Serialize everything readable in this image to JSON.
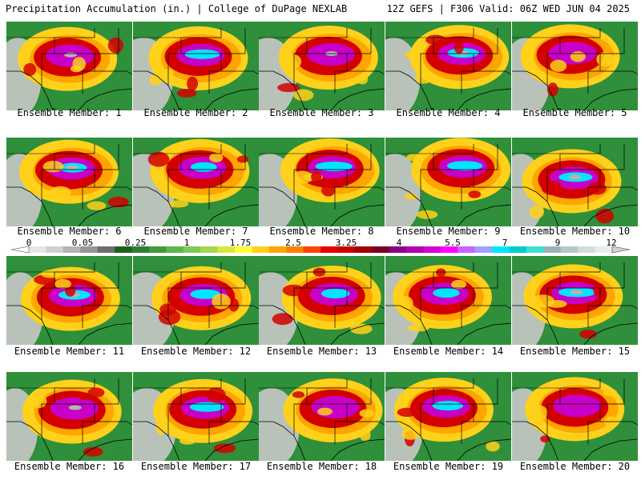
{
  "header": {
    "left": "Precipitation Accumulation (in.) | College of DuPage NEXLAB",
    "right": "12Z GEFS | F306 Valid: 06Z WED JUN 04 2025"
  },
  "panels": [
    {
      "caption": "Ensemble Member: 1"
    },
    {
      "caption": "Ensemble Member: 2"
    },
    {
      "caption": "Ensemble Member: 3"
    },
    {
      "caption": "Ensemble Member: 4"
    },
    {
      "caption": "Ensemble Member: 5"
    },
    {
      "caption": "Ensemble Member: 6"
    },
    {
      "caption": "Ensemble Member: 7"
    },
    {
      "caption": "Ensemble Member: 8"
    },
    {
      "caption": "Ensemble Member: 9"
    },
    {
      "caption": "Ensemble Member: 10"
    },
    {
      "caption": "Ensemble Member: 11"
    },
    {
      "caption": "Ensemble Member: 12"
    },
    {
      "caption": "Ensemble Member: 13"
    },
    {
      "caption": "Ensemble Member: 14"
    },
    {
      "caption": "Ensemble Member: 15"
    },
    {
      "caption": "Ensemble Member: 16"
    },
    {
      "caption": "Ensemble Member: 17"
    },
    {
      "caption": "Ensemble Member: 18"
    },
    {
      "caption": "Ensemble Member: 19"
    },
    {
      "caption": "Ensemble Member: 20"
    }
  ],
  "colorbar": {
    "tick_labels": [
      "0",
      "0.05",
      "0.25",
      "1",
      "1.75",
      "2.5",
      "3.25",
      "4",
      "5.5",
      "7",
      "9",
      "12"
    ],
    "colors": [
      "#e6e6e6",
      "#cfcfcf",
      "#b4b4b4",
      "#969696",
      "#6e6e6e",
      "#1e5f1e",
      "#2e7d32",
      "#3f9a3a",
      "#59b84a",
      "#7cc95a",
      "#a5d84e",
      "#d6e83c",
      "#ffff33",
      "#ffd11a",
      "#ffa500",
      "#ff7f00",
      "#ff4500",
      "#e60000",
      "#c80000",
      "#a00000",
      "#7a0020",
      "#8b008b",
      "#b000b0",
      "#d400d4",
      "#ff00ff",
      "#c864ff",
      "#a0a0ff",
      "#00e5ff",
      "#00cccc",
      "#40e0d0",
      "#9ab4b4",
      "#b4c8c8",
      "#d2dcdc",
      "#e6eeee"
    ]
  },
  "legend_colors": {
    "dry": "#c8c8c8",
    "light": "#2f8f3a",
    "moderate": "#ffd11a",
    "heavy": "#d40000",
    "very_heavy": "#c800c8",
    "extreme": "#00e5ff",
    "top": "#b4b4b4"
  }
}
